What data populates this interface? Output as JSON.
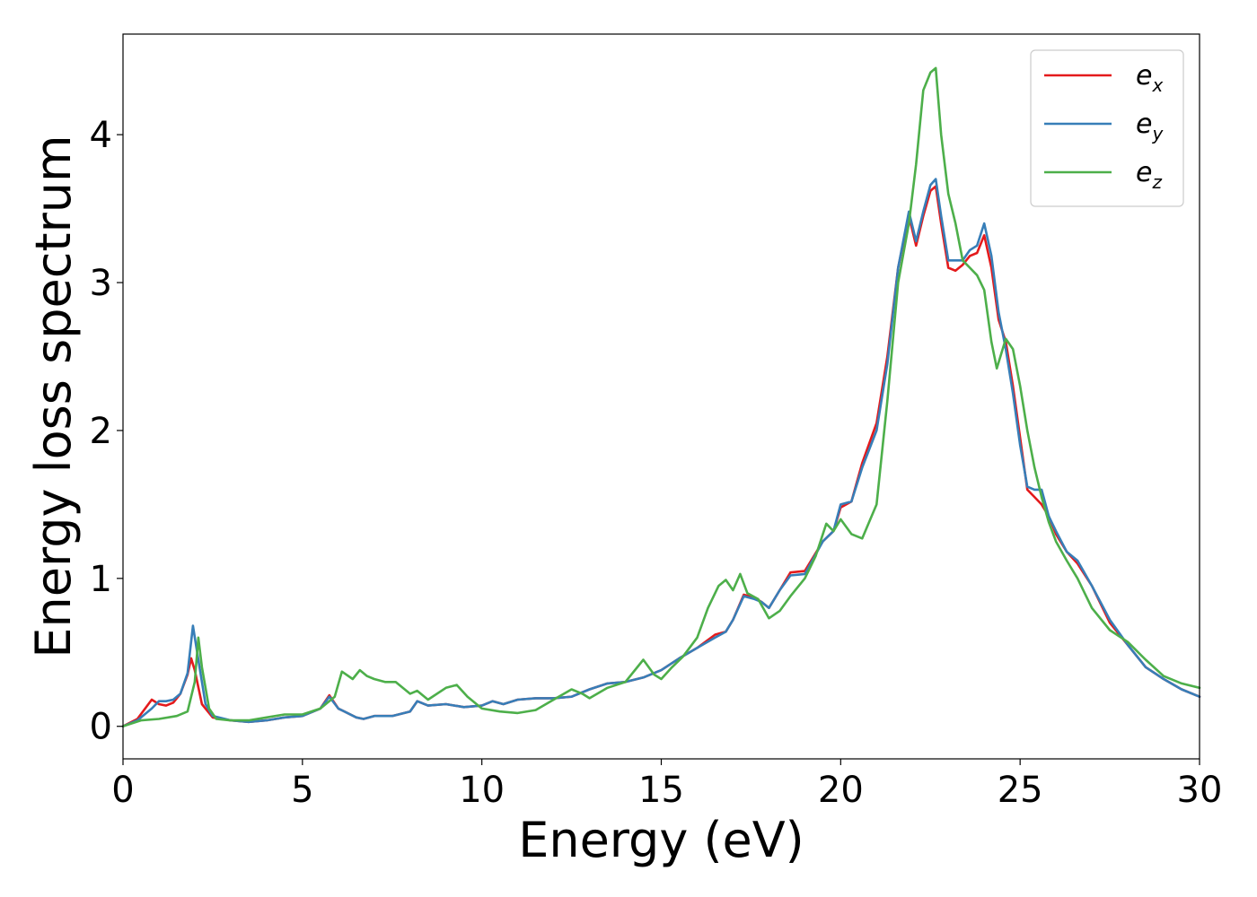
{
  "chart_data": {
    "type": "line",
    "xlabel": "Energy (eV)",
    "ylabel": "Energy loss spectrum",
    "xlim": [
      0,
      30
    ],
    "ylim": [
      -0.22,
      4.68
    ],
    "xticks": [
      0,
      5,
      10,
      15,
      20,
      25,
      30
    ],
    "yticks": [
      0,
      1,
      2,
      3,
      4
    ],
    "grid": false,
    "legend_position": "top-right",
    "series": [
      {
        "name": "e_x",
        "label_base": "e",
        "label_sub": "x",
        "color": "#e41a1c",
        "points": [
          [
            0,
            0
          ],
          [
            0.4,
            0.05
          ],
          [
            0.8,
            0.18
          ],
          [
            1.0,
            0.15
          ],
          [
            1.2,
            0.14
          ],
          [
            1.4,
            0.16
          ],
          [
            1.6,
            0.22
          ],
          [
            1.8,
            0.35
          ],
          [
            1.9,
            0.46
          ],
          [
            2.0,
            0.38
          ],
          [
            2.2,
            0.15
          ],
          [
            2.5,
            0.06
          ],
          [
            3,
            0.04
          ],
          [
            3.5,
            0.03
          ],
          [
            4,
            0.04
          ],
          [
            4.5,
            0.06
          ],
          [
            5,
            0.07
          ],
          [
            5.5,
            0.12
          ],
          [
            5.75,
            0.21
          ],
          [
            6,
            0.12
          ],
          [
            6.5,
            0.06
          ],
          [
            6.7,
            0.05
          ],
          [
            7,
            0.07
          ],
          [
            7.5,
            0.07
          ],
          [
            8,
            0.1
          ],
          [
            8.2,
            0.17
          ],
          [
            8.5,
            0.14
          ],
          [
            9,
            0.15
          ],
          [
            9.5,
            0.13
          ],
          [
            10,
            0.14
          ],
          [
            10.3,
            0.17
          ],
          [
            10.6,
            0.15
          ],
          [
            11,
            0.18
          ],
          [
            11.5,
            0.19
          ],
          [
            12,
            0.19
          ],
          [
            12.5,
            0.2
          ],
          [
            13,
            0.25
          ],
          [
            13.5,
            0.29
          ],
          [
            14,
            0.3
          ],
          [
            14.5,
            0.33
          ],
          [
            15,
            0.38
          ],
          [
            15.5,
            0.46
          ],
          [
            16,
            0.53
          ],
          [
            16.5,
            0.62
          ],
          [
            16.8,
            0.64
          ],
          [
            17,
            0.72
          ],
          [
            17.3,
            0.89
          ],
          [
            17.6,
            0.87
          ],
          [
            17.8,
            0.84
          ],
          [
            18,
            0.8
          ],
          [
            18.3,
            0.92
          ],
          [
            18.6,
            1.04
          ],
          [
            19,
            1.05
          ],
          [
            19.5,
            1.25
          ],
          [
            19.8,
            1.32
          ],
          [
            20,
            1.48
          ],
          [
            20.3,
            1.52
          ],
          [
            20.6,
            1.78
          ],
          [
            21,
            2.05
          ],
          [
            21.3,
            2.5
          ],
          [
            21.6,
            3.1
          ],
          [
            21.9,
            3.45
          ],
          [
            22.1,
            3.25
          ],
          [
            22.3,
            3.45
          ],
          [
            22.5,
            3.62
          ],
          [
            22.65,
            3.65
          ],
          [
            22.8,
            3.4
          ],
          [
            23,
            3.1
          ],
          [
            23.2,
            3.08
          ],
          [
            23.4,
            3.12
          ],
          [
            23.6,
            3.18
          ],
          [
            23.8,
            3.2
          ],
          [
            24,
            3.32
          ],
          [
            24.2,
            3.1
          ],
          [
            24.4,
            2.75
          ],
          [
            24.6,
            2.6
          ],
          [
            24.8,
            2.3
          ],
          [
            25,
            1.95
          ],
          [
            25.2,
            1.6
          ],
          [
            25.4,
            1.55
          ],
          [
            25.6,
            1.5
          ],
          [
            25.8,
            1.42
          ],
          [
            26,
            1.3
          ],
          [
            26.3,
            1.18
          ],
          [
            26.6,
            1.1
          ],
          [
            27,
            0.95
          ],
          [
            27.5,
            0.7
          ],
          [
            28,
            0.55
          ],
          [
            28.5,
            0.4
          ],
          [
            29,
            0.32
          ],
          [
            29.5,
            0.25
          ],
          [
            30,
            0.2
          ]
        ]
      },
      {
        "name": "e_y",
        "label_base": "e",
        "label_sub": "y",
        "color": "#377eb8",
        "points": [
          [
            0,
            0
          ],
          [
            0.4,
            0.04
          ],
          [
            0.8,
            0.12
          ],
          [
            1.0,
            0.17
          ],
          [
            1.2,
            0.17
          ],
          [
            1.4,
            0.18
          ],
          [
            1.6,
            0.22
          ],
          [
            1.8,
            0.36
          ],
          [
            1.95,
            0.68
          ],
          [
            2.1,
            0.45
          ],
          [
            2.3,
            0.15
          ],
          [
            2.5,
            0.07
          ],
          [
            3,
            0.04
          ],
          [
            3.5,
            0.03
          ],
          [
            4,
            0.04
          ],
          [
            4.5,
            0.06
          ],
          [
            5,
            0.07
          ],
          [
            5.5,
            0.12
          ],
          [
            5.75,
            0.2
          ],
          [
            6,
            0.12
          ],
          [
            6.5,
            0.06
          ],
          [
            6.7,
            0.05
          ],
          [
            7,
            0.07
          ],
          [
            7.5,
            0.07
          ],
          [
            8,
            0.1
          ],
          [
            8.2,
            0.17
          ],
          [
            8.5,
            0.14
          ],
          [
            9,
            0.15
          ],
          [
            9.5,
            0.13
          ],
          [
            10,
            0.14
          ],
          [
            10.3,
            0.17
          ],
          [
            10.6,
            0.15
          ],
          [
            11,
            0.18
          ],
          [
            11.5,
            0.19
          ],
          [
            12,
            0.19
          ],
          [
            12.5,
            0.2
          ],
          [
            13,
            0.25
          ],
          [
            13.5,
            0.29
          ],
          [
            14,
            0.3
          ],
          [
            14.5,
            0.33
          ],
          [
            15,
            0.38
          ],
          [
            15.5,
            0.46
          ],
          [
            16,
            0.53
          ],
          [
            16.5,
            0.6
          ],
          [
            16.8,
            0.64
          ],
          [
            17,
            0.72
          ],
          [
            17.3,
            0.88
          ],
          [
            17.6,
            0.86
          ],
          [
            17.8,
            0.84
          ],
          [
            18,
            0.8
          ],
          [
            18.3,
            0.92
          ],
          [
            18.6,
            1.02
          ],
          [
            19,
            1.03
          ],
          [
            19.5,
            1.25
          ],
          [
            19.8,
            1.32
          ],
          [
            20,
            1.5
          ],
          [
            20.3,
            1.52
          ],
          [
            20.6,
            1.75
          ],
          [
            21,
            2.0
          ],
          [
            21.3,
            2.45
          ],
          [
            21.6,
            3.1
          ],
          [
            21.9,
            3.48
          ],
          [
            22.1,
            3.28
          ],
          [
            22.3,
            3.48
          ],
          [
            22.5,
            3.66
          ],
          [
            22.65,
            3.7
          ],
          [
            22.8,
            3.45
          ],
          [
            23,
            3.15
          ],
          [
            23.2,
            3.15
          ],
          [
            23.4,
            3.15
          ],
          [
            23.6,
            3.22
          ],
          [
            23.8,
            3.25
          ],
          [
            24,
            3.4
          ],
          [
            24.2,
            3.18
          ],
          [
            24.4,
            2.8
          ],
          [
            24.6,
            2.55
          ],
          [
            24.8,
            2.25
          ],
          [
            25,
            1.9
          ],
          [
            25.2,
            1.62
          ],
          [
            25.4,
            1.6
          ],
          [
            25.6,
            1.6
          ],
          [
            25.8,
            1.42
          ],
          [
            26,
            1.32
          ],
          [
            26.3,
            1.18
          ],
          [
            26.6,
            1.12
          ],
          [
            27,
            0.95
          ],
          [
            27.5,
            0.72
          ],
          [
            28,
            0.55
          ],
          [
            28.5,
            0.4
          ],
          [
            29,
            0.32
          ],
          [
            29.5,
            0.25
          ],
          [
            30,
            0.2
          ]
        ]
      },
      {
        "name": "e_z",
        "label_base": "e",
        "label_sub": "z",
        "color": "#4daf4a",
        "points": [
          [
            0,
            0
          ],
          [
            0.5,
            0.04
          ],
          [
            1,
            0.05
          ],
          [
            1.5,
            0.07
          ],
          [
            1.8,
            0.1
          ],
          [
            2.0,
            0.3
          ],
          [
            2.1,
            0.6
          ],
          [
            2.2,
            0.4
          ],
          [
            2.4,
            0.12
          ],
          [
            2.6,
            0.05
          ],
          [
            3,
            0.04
          ],
          [
            3.5,
            0.04
          ],
          [
            4,
            0.06
          ],
          [
            4.5,
            0.08
          ],
          [
            5,
            0.08
          ],
          [
            5.5,
            0.12
          ],
          [
            5.9,
            0.2
          ],
          [
            6.1,
            0.37
          ],
          [
            6.4,
            0.32
          ],
          [
            6.6,
            0.38
          ],
          [
            6.8,
            0.34
          ],
          [
            7,
            0.32
          ],
          [
            7.3,
            0.3
          ],
          [
            7.6,
            0.3
          ],
          [
            8,
            0.22
          ],
          [
            8.2,
            0.24
          ],
          [
            8.5,
            0.18
          ],
          [
            9,
            0.26
          ],
          [
            9.3,
            0.28
          ],
          [
            9.6,
            0.2
          ],
          [
            10,
            0.12
          ],
          [
            10.5,
            0.1
          ],
          [
            11,
            0.09
          ],
          [
            11.5,
            0.11
          ],
          [
            12,
            0.18
          ],
          [
            12.5,
            0.25
          ],
          [
            12.8,
            0.22
          ],
          [
            13,
            0.19
          ],
          [
            13.5,
            0.26
          ],
          [
            14,
            0.3
          ],
          [
            14.5,
            0.45
          ],
          [
            14.8,
            0.35
          ],
          [
            15,
            0.32
          ],
          [
            15.3,
            0.4
          ],
          [
            15.6,
            0.47
          ],
          [
            16,
            0.6
          ],
          [
            16.3,
            0.8
          ],
          [
            16.6,
            0.95
          ],
          [
            16.8,
            0.99
          ],
          [
            17,
            0.92
          ],
          [
            17.2,
            1.03
          ],
          [
            17.4,
            0.9
          ],
          [
            17.7,
            0.86
          ],
          [
            18,
            0.73
          ],
          [
            18.3,
            0.78
          ],
          [
            18.6,
            0.88
          ],
          [
            19,
            1.0
          ],
          [
            19.3,
            1.15
          ],
          [
            19.6,
            1.37
          ],
          [
            19.8,
            1.32
          ],
          [
            20,
            1.4
          ],
          [
            20.3,
            1.3
          ],
          [
            20.6,
            1.27
          ],
          [
            21,
            1.5
          ],
          [
            21.3,
            2.2
          ],
          [
            21.6,
            3.0
          ],
          [
            21.9,
            3.4
          ],
          [
            22.1,
            3.8
          ],
          [
            22.3,
            4.3
          ],
          [
            22.5,
            4.42
          ],
          [
            22.65,
            4.45
          ],
          [
            22.8,
            4.0
          ],
          [
            23,
            3.6
          ],
          [
            23.2,
            3.4
          ],
          [
            23.4,
            3.15
          ],
          [
            23.6,
            3.1
          ],
          [
            23.8,
            3.05
          ],
          [
            24,
            2.95
          ],
          [
            24.2,
            2.6
          ],
          [
            24.35,
            2.42
          ],
          [
            24.6,
            2.62
          ],
          [
            24.8,
            2.55
          ],
          [
            25,
            2.3
          ],
          [
            25.2,
            2.0
          ],
          [
            25.4,
            1.75
          ],
          [
            25.6,
            1.55
          ],
          [
            25.8,
            1.38
          ],
          [
            26,
            1.25
          ],
          [
            26.3,
            1.12
          ],
          [
            26.6,
            1.0
          ],
          [
            27,
            0.8
          ],
          [
            27.5,
            0.65
          ],
          [
            28,
            0.57
          ],
          [
            28.5,
            0.45
          ],
          [
            29,
            0.34
          ],
          [
            29.5,
            0.29
          ],
          [
            30,
            0.26
          ]
        ]
      }
    ]
  }
}
